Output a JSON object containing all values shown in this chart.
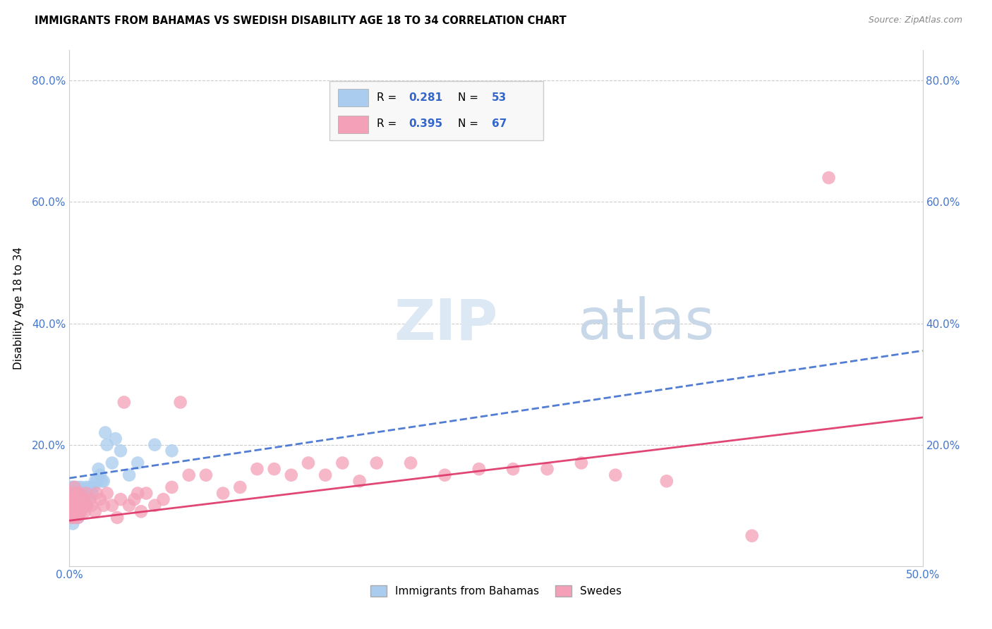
{
  "title": "IMMIGRANTS FROM BAHAMAS VS SWEDISH DISABILITY AGE 18 TO 34 CORRELATION CHART",
  "source": "Source: ZipAtlas.com",
  "ylabel": "Disability Age 18 to 34",
  "xlim": [
    0,
    0.5
  ],
  "ylim": [
    0,
    0.85
  ],
  "xticks": [
    0.0,
    0.1,
    0.2,
    0.3,
    0.4,
    0.5
  ],
  "xtick_labels": [
    "0.0%",
    "",
    "",
    "",
    "",
    "50.0%"
  ],
  "yticks": [
    0.0,
    0.2,
    0.4,
    0.6,
    0.8
  ],
  "ytick_labels": [
    "",
    "20.0%",
    "40.0%",
    "60.0%",
    "80.0%"
  ],
  "blue_R": "0.281",
  "blue_N": "53",
  "pink_R": "0.395",
  "pink_N": "67",
  "blue_color": "#aaccee",
  "pink_color": "#f4a0b8",
  "blue_line_color": "#3366cc",
  "blue_line_style": "--",
  "pink_line_color": "#dd3366",
  "pink_line_style": "-",
  "watermark_text": "ZIPatlas",
  "blue_line_x0": 0.0,
  "blue_line_y0": 0.145,
  "blue_line_x1": 0.5,
  "blue_line_y1": 0.355,
  "pink_line_x0": 0.0,
  "pink_line_y0": 0.075,
  "pink_line_x1": 0.5,
  "pink_line_y1": 0.245,
  "blue_scatter_x": [
    0.001,
    0.001,
    0.001,
    0.001,
    0.002,
    0.002,
    0.002,
    0.002,
    0.002,
    0.003,
    0.003,
    0.003,
    0.003,
    0.003,
    0.004,
    0.004,
    0.004,
    0.004,
    0.005,
    0.005,
    0.005,
    0.005,
    0.006,
    0.006,
    0.006,
    0.007,
    0.007,
    0.007,
    0.008,
    0.008,
    0.009,
    0.009,
    0.01,
    0.01,
    0.011,
    0.012,
    0.013,
    0.014,
    0.015,
    0.016,
    0.017,
    0.018,
    0.019,
    0.02,
    0.021,
    0.022,
    0.025,
    0.027,
    0.03,
    0.035,
    0.04,
    0.05,
    0.06
  ],
  "blue_scatter_y": [
    0.1,
    0.12,
    0.08,
    0.13,
    0.1,
    0.11,
    0.09,
    0.13,
    0.07,
    0.11,
    0.09,
    0.12,
    0.1,
    0.13,
    0.09,
    0.11,
    0.1,
    0.12,
    0.1,
    0.11,
    0.08,
    0.13,
    0.1,
    0.12,
    0.09,
    0.1,
    0.11,
    0.13,
    0.11,
    0.1,
    0.1,
    0.12,
    0.1,
    0.13,
    0.12,
    0.13,
    0.12,
    0.13,
    0.14,
    0.14,
    0.16,
    0.15,
    0.14,
    0.14,
    0.22,
    0.2,
    0.17,
    0.21,
    0.19,
    0.15,
    0.17,
    0.2,
    0.19
  ],
  "pink_scatter_x": [
    0.001,
    0.001,
    0.001,
    0.002,
    0.002,
    0.002,
    0.003,
    0.003,
    0.003,
    0.003,
    0.004,
    0.004,
    0.004,
    0.005,
    0.005,
    0.005,
    0.006,
    0.006,
    0.007,
    0.007,
    0.008,
    0.008,
    0.009,
    0.01,
    0.01,
    0.012,
    0.013,
    0.015,
    0.016,
    0.018,
    0.02,
    0.022,
    0.025,
    0.028,
    0.03,
    0.032,
    0.035,
    0.038,
    0.04,
    0.042,
    0.045,
    0.05,
    0.055,
    0.06,
    0.065,
    0.07,
    0.08,
    0.09,
    0.1,
    0.11,
    0.12,
    0.13,
    0.14,
    0.15,
    0.16,
    0.17,
    0.18,
    0.2,
    0.22,
    0.24,
    0.26,
    0.28,
    0.3,
    0.32,
    0.35,
    0.4,
    0.445
  ],
  "pink_scatter_y": [
    0.1,
    0.08,
    0.12,
    0.09,
    0.11,
    0.1,
    0.08,
    0.11,
    0.09,
    0.13,
    0.1,
    0.09,
    0.12,
    0.08,
    0.11,
    0.1,
    0.09,
    0.12,
    0.1,
    0.09,
    0.11,
    0.1,
    0.09,
    0.1,
    0.12,
    0.11,
    0.1,
    0.09,
    0.12,
    0.11,
    0.1,
    0.12,
    0.1,
    0.08,
    0.11,
    0.27,
    0.1,
    0.11,
    0.12,
    0.09,
    0.12,
    0.1,
    0.11,
    0.13,
    0.27,
    0.15,
    0.15,
    0.12,
    0.13,
    0.16,
    0.16,
    0.15,
    0.17,
    0.15,
    0.17,
    0.14,
    0.17,
    0.17,
    0.15,
    0.16,
    0.16,
    0.16,
    0.17,
    0.15,
    0.14,
    0.05,
    0.64
  ]
}
